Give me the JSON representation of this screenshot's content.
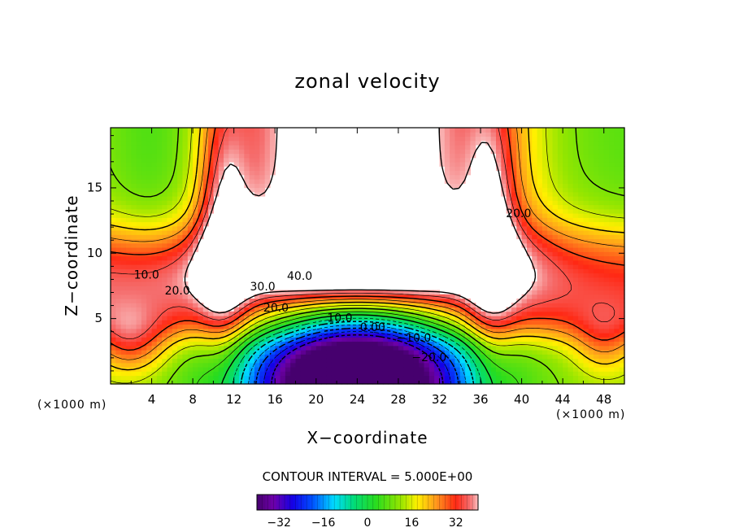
{
  "chart_data": {
    "type": "heatmap",
    "title": "zonal velocity",
    "xlabel": "X−coordinate",
    "ylabel": "Z−coordinate",
    "x_unit": "(×1000 m)",
    "xlim": [
      0,
      50
    ],
    "ylim": [
      0,
      19.6
    ],
    "x_ticks": [
      "4",
      "8",
      "12",
      "16",
      "20",
      "24",
      "28",
      "32",
      "36",
      "40",
      "44",
      "48"
    ],
    "y_ticks": [
      "5",
      "10",
      "15"
    ],
    "contour_interval_text": "CONTOUR INTERVAL = 5.000E+00",
    "contour_labels": [
      {
        "text": "40.0",
        "x": 18.4,
        "z": 8.2
      },
      {
        "text": "30.0",
        "x": 14.8,
        "z": 7.4
      },
      {
        "text": "20.0",
        "x": 16.1,
        "z": 5.8
      },
      {
        "text": "20.0",
        "x": 6.5,
        "z": 7.1
      },
      {
        "text": "10.0",
        "x": 3.5,
        "z": 8.3
      },
      {
        "text": "20.0",
        "x": 39.7,
        "z": 13.0
      },
      {
        "text": "10.0",
        "x": 22.3,
        "z": 5.0
      },
      {
        "text": "0.00",
        "x": 25.5,
        "z": 4.3
      },
      {
        "text": "−10.0",
        "x": 29.5,
        "z": 3.5
      },
      {
        "text": "−20.0",
        "x": 31.0,
        "z": 2.0
      }
    ],
    "colorbar": {
      "min": -40,
      "max": 40,
      "ticks": [
        "−32",
        "−16",
        "0",
        "16",
        "32"
      ],
      "tick_values": [
        -32,
        -16,
        0,
        16,
        32
      ]
    },
    "masked_regions": "values above 40 (upper jet core, x≈12–35, z≈8–19.6)"
  }
}
